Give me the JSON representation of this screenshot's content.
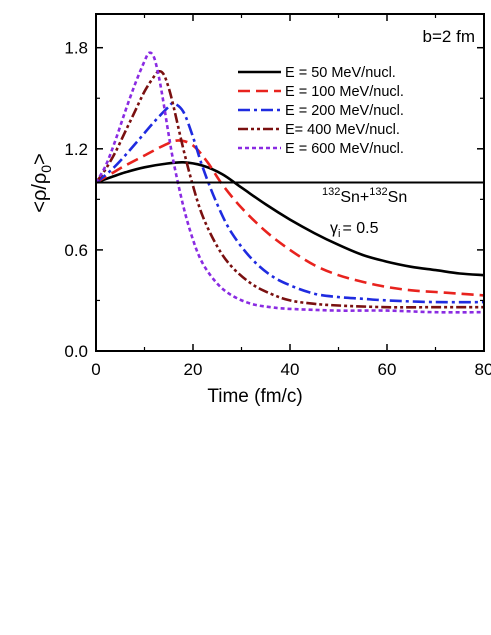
{
  "chart_data": {
    "type": "line",
    "title": "",
    "xlabel": "Time (fm/c)",
    "ylabel": "<ρ/ρ0>",
    "xlim": [
      0,
      80
    ],
    "ylim": [
      0,
      2.0
    ],
    "xticks": [
      0,
      20,
      40,
      60,
      80
    ],
    "yticks": [
      0.0,
      0.6,
      1.2,
      1.8
    ],
    "xtick_labels": [
      "0",
      "20",
      "40",
      "60",
      "80"
    ],
    "ytick_labels": [
      "0.0",
      "0.6",
      "1.2",
      "1.8"
    ],
    "reference_line": {
      "y": 1.0
    },
    "legend_position": "top-right",
    "annotations": {
      "impact": "b=2 fm",
      "system": {
        "mass_a": "132",
        "el_a": "Sn+",
        "mass_b": "132",
        "el_b": "Sn"
      },
      "gamma": {
        "symbol": "γ",
        "sub": "i",
        "rest": "= 0.5"
      }
    },
    "series": [
      {
        "name": "E = 50 MeV/nucl.",
        "color": "#000000",
        "dash": "solid",
        "x": [
          0,
          3,
          6,
          10,
          14,
          18,
          22,
          26,
          30,
          35,
          40,
          45,
          50,
          55,
          60,
          65,
          70,
          75,
          80
        ],
        "y": [
          1.0,
          1.03,
          1.06,
          1.09,
          1.11,
          1.12,
          1.1,
          1.05,
          0.97,
          0.87,
          0.78,
          0.7,
          0.63,
          0.57,
          0.53,
          0.5,
          0.48,
          0.46,
          0.45
        ]
      },
      {
        "name": "E = 100 MeV/nucl.",
        "color": "#e8231e",
        "dash": "dash",
        "x": [
          0,
          3,
          6,
          10,
          14,
          17,
          20,
          23,
          26,
          30,
          35,
          40,
          45,
          50,
          55,
          60,
          65,
          70,
          75,
          80
        ],
        "y": [
          1.0,
          1.05,
          1.1,
          1.16,
          1.22,
          1.25,
          1.22,
          1.12,
          0.99,
          0.85,
          0.71,
          0.6,
          0.51,
          0.45,
          0.41,
          0.38,
          0.36,
          0.35,
          0.34,
          0.33
        ]
      },
      {
        "name": "E = 200 MeV/nucl.",
        "color": "#1f2be0",
        "dash": "dashdot",
        "x": [
          0,
          3,
          6,
          9,
          12,
          15,
          16,
          18,
          20,
          22,
          25,
          28,
          32,
          36,
          40,
          45,
          50,
          55,
          60,
          70,
          80
        ],
        "y": [
          1.0,
          1.07,
          1.16,
          1.26,
          1.36,
          1.45,
          1.47,
          1.42,
          1.27,
          1.09,
          0.87,
          0.7,
          0.55,
          0.45,
          0.39,
          0.34,
          0.32,
          0.31,
          0.3,
          0.29,
          0.29
        ]
      },
      {
        "name": "E= 400 MeV/nucl.",
        "color": "#7a1010",
        "dash": "dashdotdot",
        "x": [
          0,
          2,
          4,
          6,
          8,
          10,
          12,
          13,
          14,
          15,
          16,
          18,
          20,
          22,
          25,
          28,
          32,
          36,
          40,
          45,
          50,
          60,
          70,
          80
        ],
        "y": [
          1.0,
          1.08,
          1.18,
          1.3,
          1.42,
          1.54,
          1.63,
          1.66,
          1.64,
          1.56,
          1.45,
          1.2,
          0.98,
          0.8,
          0.62,
          0.5,
          0.4,
          0.34,
          0.3,
          0.28,
          0.27,
          0.26,
          0.26,
          0.26
        ]
      },
      {
        "name": "E = 600 MeV/nucl.",
        "color": "#8a2be2",
        "dash": "dot",
        "x": [
          0,
          2,
          4,
          6,
          8,
          10,
          11,
          12,
          13,
          14,
          15,
          16,
          18,
          20,
          22,
          25,
          28,
          32,
          36,
          40,
          50,
          60,
          70,
          80
        ],
        "y": [
          1.0,
          1.1,
          1.25,
          1.42,
          1.58,
          1.72,
          1.77,
          1.74,
          1.62,
          1.46,
          1.28,
          1.12,
          0.86,
          0.66,
          0.52,
          0.4,
          0.33,
          0.28,
          0.26,
          0.25,
          0.24,
          0.24,
          0.23,
          0.23
        ]
      }
    ]
  }
}
